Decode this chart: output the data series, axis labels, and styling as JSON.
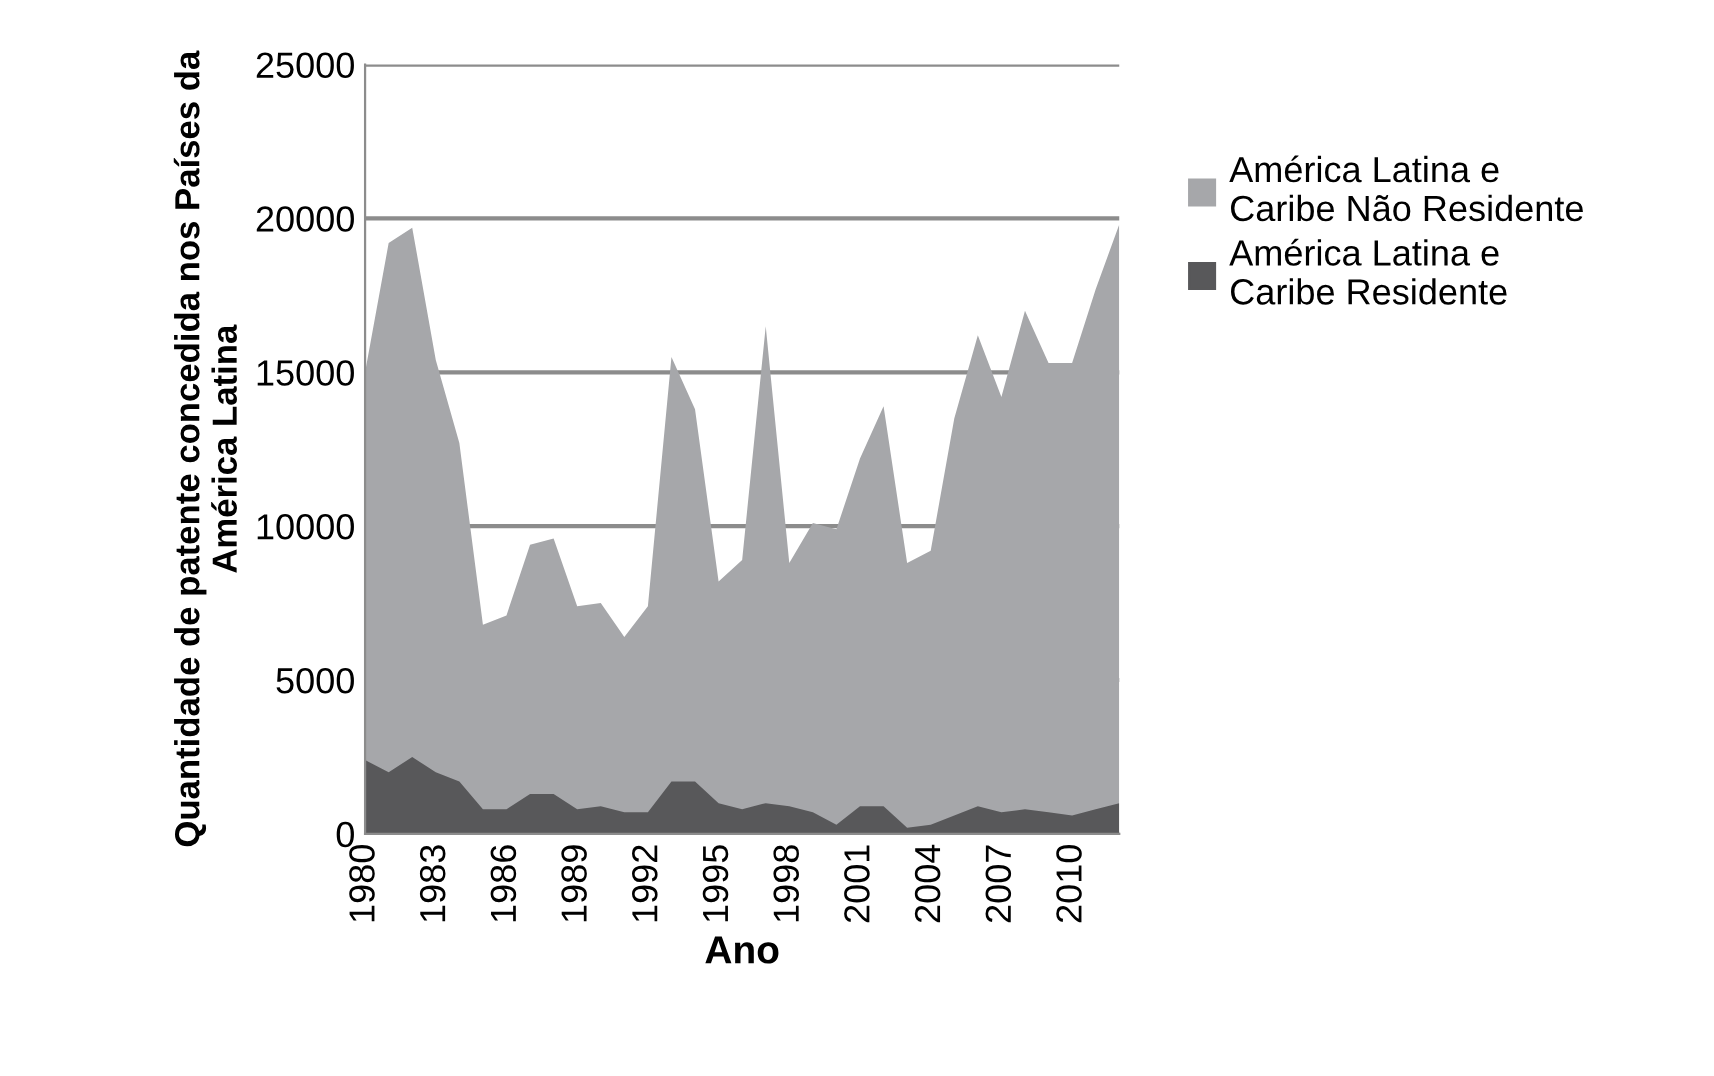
{
  "chart_data": {
    "type": "area",
    "xlabel": "Ano",
    "ylabel": "Quantidade de patente concedida nos Países da América Latina",
    "x": [
      1980,
      1981,
      1982,
      1983,
      1984,
      1985,
      1986,
      1987,
      1988,
      1989,
      1990,
      1991,
      1992,
      1993,
      1994,
      1995,
      1996,
      1997,
      1998,
      1999,
      2000,
      2001,
      2002,
      2003,
      2004,
      2005,
      2006,
      2007,
      2008,
      2009,
      2010,
      2011,
      2012
    ],
    "series": [
      {
        "name": "América Latina e Caribe Não Residente",
        "color": "#a6a7aa",
        "values": [
          15000,
          19200,
          19700,
          15400,
          12700,
          6800,
          7100,
          9400,
          9600,
          7400,
          7500,
          6400,
          7400,
          15500,
          13800,
          8200,
          8900,
          16500,
          8800,
          10100,
          9900,
          12200,
          13900,
          8800,
          9200,
          13500,
          16200,
          14200,
          17000,
          15300,
          15300,
          17700,
          19800
        ]
      },
      {
        "name": "América Latina e Caribe Residente",
        "color": "#58585a",
        "values": [
          2400,
          2000,
          2500,
          2000,
          1700,
          800,
          800,
          1300,
          1300,
          800,
          900,
          700,
          700,
          1700,
          1700,
          1000,
          800,
          1000,
          900,
          700,
          300,
          900,
          900,
          200,
          300,
          600,
          900,
          700,
          800,
          700,
          600,
          800,
          1000
        ]
      }
    ],
    "xlim": [
      1980,
      2012
    ],
    "xticks": [
      1980,
      1983,
      1986,
      1989,
      1992,
      1995,
      1998,
      2001,
      2004,
      2007,
      2010
    ],
    "ylim": [
      0,
      25000
    ],
    "yticks": [
      0,
      5000,
      10000,
      15000,
      20000,
      25000
    ],
    "grid": "y",
    "legend": "right"
  }
}
